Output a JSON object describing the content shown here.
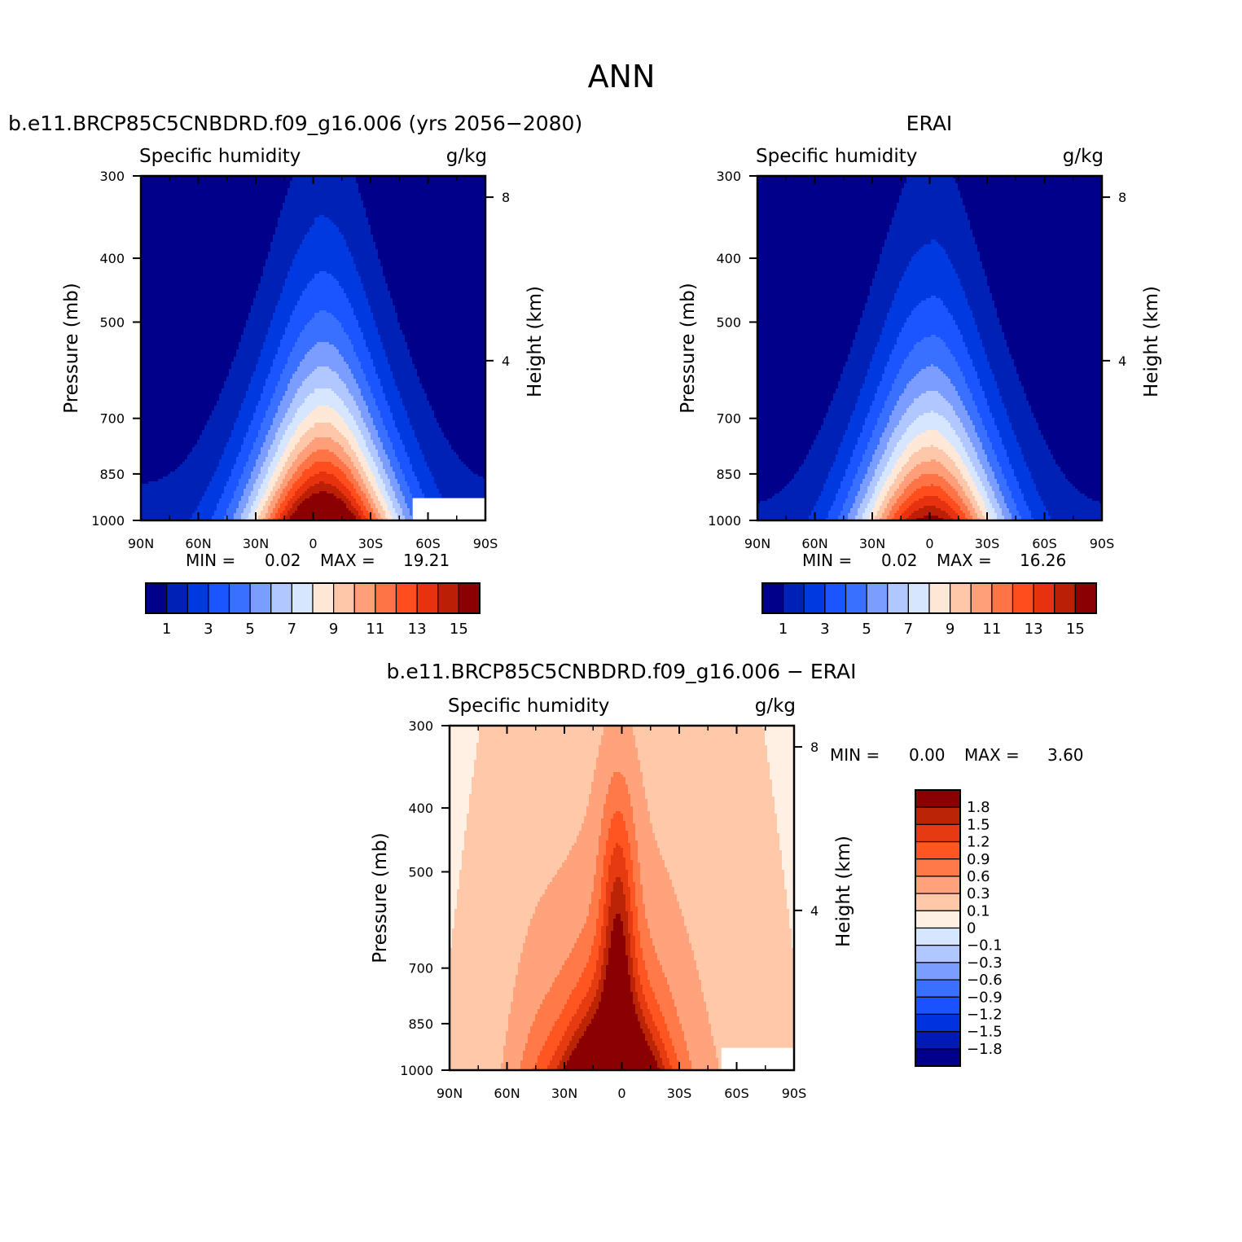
{
  "figure": {
    "title": "ANN",
    "panel_left_title": "b.e11.BRCP85C5CNBDRD.f09_g16.006 (yrs 2056−2080)",
    "panel_right_title": "ERAI",
    "panel_bottom_title": "b.e11.BRCP85C5CNBDRD.f09_g16.006 − ERAI"
  },
  "colors": {
    "abs": [
      "#00008b",
      "#0021b5",
      "#0039e0",
      "#1a55ff",
      "#3a70ff",
      "#7b9dff",
      "#b0c8ff",
      "#d6e6ff",
      "#ffe8d8",
      "#ffc7aa",
      "#ff9f7a",
      "#ff7446",
      "#ff4d1e",
      "#e6320e",
      "#bb1f06",
      "#8b0000"
    ],
    "diff": [
      "#00008b",
      "#001ab8",
      "#0033e0",
      "#1a52ff",
      "#3a70ff",
      "#7b9dff",
      "#b0c8ff",
      "#d6e6ff",
      "#fff0e3",
      "#ffc8a8",
      "#ffa37c",
      "#ff7a48",
      "#ff5520",
      "#e63b10",
      "#bb2506",
      "#8b0000"
    ],
    "missing": "#ffffff"
  },
  "chart_data": [
    {
      "type": "heatmap",
      "name": "left",
      "label_left": "Specific humidity",
      "label_right": "g/kg",
      "xlabel": "",
      "ylabel": "Pressure (mb)",
      "ylabel_right": "Height (km)",
      "x_ticks": [
        "90N",
        "60N",
        "30N",
        "0",
        "30S",
        "60S",
        "90S"
      ],
      "x_values": [
        90,
        60,
        30,
        0,
        -30,
        -60,
        -90
      ],
      "y_ticks": [
        "300",
        "400",
        "500",
        "700",
        "850",
        "1000"
      ],
      "y_values": [
        300,
        400,
        500,
        700,
        850,
        1000
      ],
      "y_right_ticks": [
        "8",
        "4"
      ],
      "y_right_values": [
        8,
        4
      ],
      "xlim": [
        90,
        -90
      ],
      "ylim": [
        300,
        1000
      ],
      "min_label": "MIN =",
      "min_value": "0.02",
      "max_label": "MAX =",
      "max_value": "19.21",
      "levels": [
        1,
        2,
        3,
        4,
        5,
        6,
        7,
        8,
        9,
        10,
        11,
        12,
        13,
        14,
        15
      ],
      "colorbar_labels": [
        "1",
        "3",
        "5",
        "7",
        "9",
        "11",
        "13",
        "15"
      ],
      "peak_lat": -5,
      "peak_value": 19.21,
      "surface_value_tropics": 19.0,
      "surface_value_polar": 1.5,
      "missing_region": {
        "lat": [
          -52,
          -90
        ],
        "p": [
          925,
          1000
        ]
      }
    },
    {
      "type": "heatmap",
      "name": "right",
      "label_left": "Specific humidity",
      "label_right": "g/kg",
      "xlabel": "",
      "ylabel": "Pressure (mb)",
      "ylabel_right": "Height (km)",
      "x_ticks": [
        "90N",
        "60N",
        "30N",
        "0",
        "30S",
        "60S",
        "90S"
      ],
      "x_values": [
        90,
        60,
        30,
        0,
        -30,
        -60,
        -90
      ],
      "y_ticks": [
        "300",
        "400",
        "500",
        "700",
        "850",
        "1000"
      ],
      "y_values": [
        300,
        400,
        500,
        700,
        850,
        1000
      ],
      "y_right_ticks": [
        "8",
        "4"
      ],
      "y_right_values": [
        8,
        4
      ],
      "xlim": [
        90,
        -90
      ],
      "ylim": [
        300,
        1000
      ],
      "min_label": "MIN =",
      "min_value": "0.02",
      "max_label": "MAX =",
      "max_value": "16.26",
      "levels": [
        1,
        2,
        3,
        4,
        5,
        6,
        7,
        8,
        9,
        10,
        11,
        12,
        13,
        14,
        15
      ],
      "colorbar_labels": [
        "1",
        "3",
        "5",
        "7",
        "9",
        "11",
        "13",
        "15"
      ],
      "peak_lat": 0,
      "peak_value": 16.26,
      "surface_value_tropics": 16.0,
      "surface_value_polar": 1.2
    },
    {
      "type": "heatmap",
      "name": "diff",
      "label_left": "Specific humidity",
      "label_right": "g/kg",
      "xlabel": "",
      "ylabel": "Pressure (mb)",
      "ylabel_right": "Height (km)",
      "x_ticks": [
        "90N",
        "60N",
        "30N",
        "0",
        "30S",
        "60S",
        "90S"
      ],
      "x_values": [
        90,
        60,
        30,
        0,
        -30,
        -60,
        -90
      ],
      "y_ticks": [
        "300",
        "400",
        "500",
        "700",
        "850",
        "1000"
      ],
      "y_values": [
        300,
        400,
        500,
        700,
        850,
        1000
      ],
      "y_right_ticks": [
        "8",
        "4"
      ],
      "y_right_values": [
        8,
        4
      ],
      "xlim": [
        90,
        -90
      ],
      "ylim": [
        300,
        1000
      ],
      "min_label": "MIN =",
      "min_value": "0.00",
      "max_label": "MAX =",
      "max_value": "3.60",
      "levels": [
        -1.8,
        -1.5,
        -1.2,
        -0.9,
        -0.6,
        -0.3,
        -0.1,
        0,
        0.1,
        0.3,
        0.6,
        0.9,
        1.2,
        1.5,
        1.8
      ],
      "colorbar_labels": [
        "1.8",
        "1.5",
        "1.2",
        "0.9",
        "0.6",
        "0.3",
        "0.1",
        "0",
        "−0.1",
        "−0.3",
        "−0.6",
        "−0.9",
        "−1.2",
        "−1.5",
        "−1.8"
      ],
      "peak_lat": 5,
      "peak_value": 3.6,
      "missing_region": {
        "lat": [
          -52,
          -90
        ],
        "p": [
          925,
          1000
        ]
      }
    }
  ]
}
